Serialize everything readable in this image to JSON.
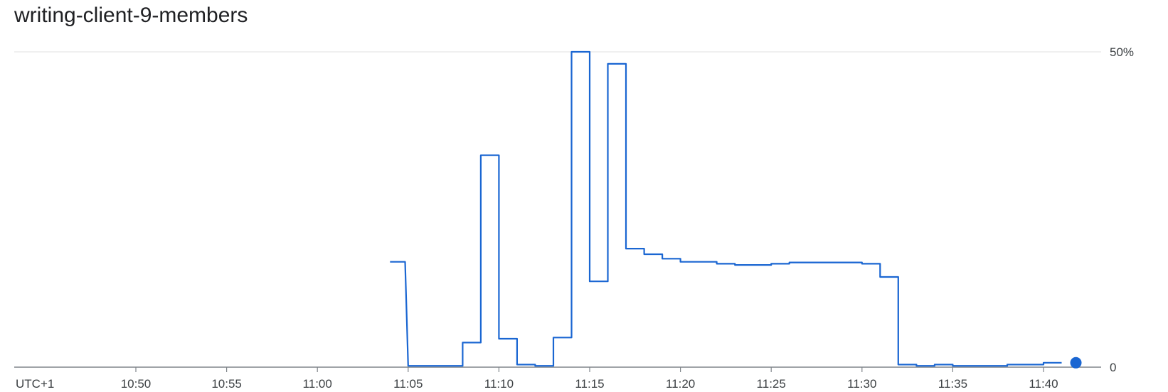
{
  "chart_data": {
    "type": "line",
    "title": "writing-client-9-members",
    "xlabel": "",
    "ylabel": "",
    "timezone_label": "UTC+1",
    "x_ticks": [
      "10:50",
      "10:55",
      "11:00",
      "11:05",
      "11:10",
      "11:15",
      "11:20",
      "11:25",
      "11:30",
      "11:35",
      "11:40"
    ],
    "y_ticks": [
      "50%",
      "0"
    ],
    "ylim": [
      0,
      50
    ],
    "grid": true,
    "step": true,
    "series": [
      {
        "color": "#1a66d2",
        "points": [
          [
            "11:04",
            16.7
          ],
          [
            "11:04:50",
            16.7
          ],
          [
            "11:05",
            0.2
          ],
          [
            "11:08",
            0.2
          ],
          [
            "11:08",
            3.9
          ],
          [
            "11:09",
            3.9
          ],
          [
            "11:09",
            33.6
          ],
          [
            "11:10",
            33.6
          ],
          [
            "11:10",
            4.5
          ],
          [
            "11:11",
            4.5
          ],
          [
            "11:11",
            0.4
          ],
          [
            "11:12",
            0.4
          ],
          [
            "11:12",
            0.2
          ],
          [
            "11:13",
            0.2
          ],
          [
            "11:13",
            4.7
          ],
          [
            "11:14",
            4.7
          ],
          [
            "11:14",
            50
          ],
          [
            "11:15",
            50
          ],
          [
            "11:15",
            13.6
          ],
          [
            "11:16",
            13.6
          ],
          [
            "11:16",
            48.1
          ],
          [
            "11:17",
            48.1
          ],
          [
            "11:17",
            18.8
          ],
          [
            "11:18",
            18.8
          ],
          [
            "11:18",
            17.9
          ],
          [
            "11:19",
            17.9
          ],
          [
            "11:19",
            17.2
          ],
          [
            "11:20",
            17.2
          ],
          [
            "11:20",
            16.7
          ],
          [
            "11:22",
            16.7
          ],
          [
            "11:22",
            16.4
          ],
          [
            "11:23",
            16.4
          ],
          [
            "11:23",
            16.2
          ],
          [
            "11:25",
            16.2
          ],
          [
            "11:25",
            16.4
          ],
          [
            "11:26",
            16.4
          ],
          [
            "11:26",
            16.6
          ],
          [
            "11:30",
            16.6
          ],
          [
            "11:30",
            16.4
          ],
          [
            "11:31",
            16.4
          ],
          [
            "11:31",
            14.3
          ],
          [
            "11:32",
            14.3
          ],
          [
            "11:32",
            0.4
          ],
          [
            "11:33",
            0.4
          ],
          [
            "11:33",
            0.2
          ],
          [
            "11:34",
            0.2
          ],
          [
            "11:34",
            0.4
          ],
          [
            "11:35",
            0.4
          ],
          [
            "11:35",
            0.2
          ],
          [
            "11:38",
            0.2
          ],
          [
            "11:38",
            0.4
          ],
          [
            "11:40",
            0.4
          ],
          [
            "11:40",
            0.7
          ],
          [
            "11:41",
            0.7
          ]
        ]
      }
    ]
  }
}
